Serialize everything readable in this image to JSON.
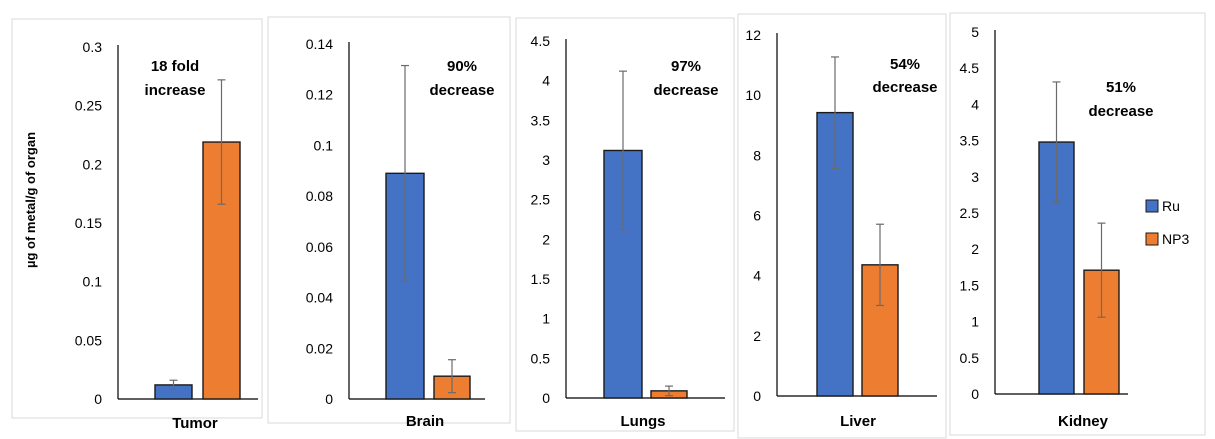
{
  "y_axis_label": "µg of metal/g of organ",
  "legend": [
    {
      "name": "Ru",
      "color": "#4472C4"
    },
    {
      "name": "NP3",
      "color": "#ED7D31"
    }
  ],
  "chart_data": [
    {
      "type": "bar",
      "categories": [
        "Tumor"
      ],
      "annotation": [
        "18 fold",
        "increase"
      ],
      "ylim": [
        0,
        0.3
      ],
      "yticks": [
        "0",
        "0.05",
        "0.1",
        "0.15",
        "0.2",
        "0.25",
        "0.3"
      ],
      "series": [
        {
          "name": "Ru",
          "values": [
            0.012
          ],
          "error": [
            0.004
          ]
        },
        {
          "name": "NP3",
          "values": [
            0.219
          ],
          "error": [
            0.053
          ]
        }
      ]
    },
    {
      "type": "bar",
      "categories": [
        "Brain"
      ],
      "annotation": [
        "90%",
        "decrease"
      ],
      "ylim": [
        0,
        0.14
      ],
      "yticks": [
        "0",
        "0.02",
        "0.04",
        "0.06",
        "0.08",
        "0.1",
        "0.12",
        "0.14"
      ],
      "series": [
        {
          "name": "Ru",
          "values": [
            0.089
          ],
          "error": [
            0.0425
          ]
        },
        {
          "name": "NP3",
          "values": [
            0.009
          ],
          "error": [
            0.0065
          ]
        }
      ]
    },
    {
      "type": "bar",
      "categories": [
        "Lungs"
      ],
      "annotation": [
        "97%",
        "decrease"
      ],
      "ylim": [
        0,
        4.5
      ],
      "yticks": [
        "0",
        "0.5",
        "1",
        "1.5",
        "2",
        "2.5",
        "3",
        "3.5",
        "4",
        "4.5"
      ],
      "series": [
        {
          "name": "Ru",
          "values": [
            3.12
          ],
          "error": [
            1.0
          ]
        },
        {
          "name": "NP3",
          "values": [
            0.09
          ],
          "error": [
            0.06
          ]
        }
      ]
    },
    {
      "type": "bar",
      "categories": [
        "Liver"
      ],
      "annotation": [
        "54%",
        "decrease"
      ],
      "ylim": [
        0,
        12
      ],
      "yticks": [
        "0",
        "2",
        "4",
        "6",
        "8",
        "10",
        "12"
      ],
      "series": [
        {
          "name": "Ru",
          "values": [
            9.42
          ],
          "error": [
            1.85
          ]
        },
        {
          "name": "NP3",
          "values": [
            4.36
          ],
          "error": [
            1.35
          ]
        }
      ]
    },
    {
      "type": "bar",
      "categories": [
        "Kidney"
      ],
      "annotation": [
        "51%",
        "decrease"
      ],
      "ylim": [
        0,
        5
      ],
      "yticks": [
        "0",
        "0.5",
        "1",
        "1.5",
        "2",
        "2.5",
        "3",
        "3.5",
        "4",
        "4.5",
        "5"
      ],
      "series": [
        {
          "name": "Ru",
          "values": [
            3.48
          ],
          "error": [
            0.83
          ]
        },
        {
          "name": "NP3",
          "values": [
            1.71
          ],
          "error": [
            0.65
          ]
        }
      ]
    }
  ]
}
